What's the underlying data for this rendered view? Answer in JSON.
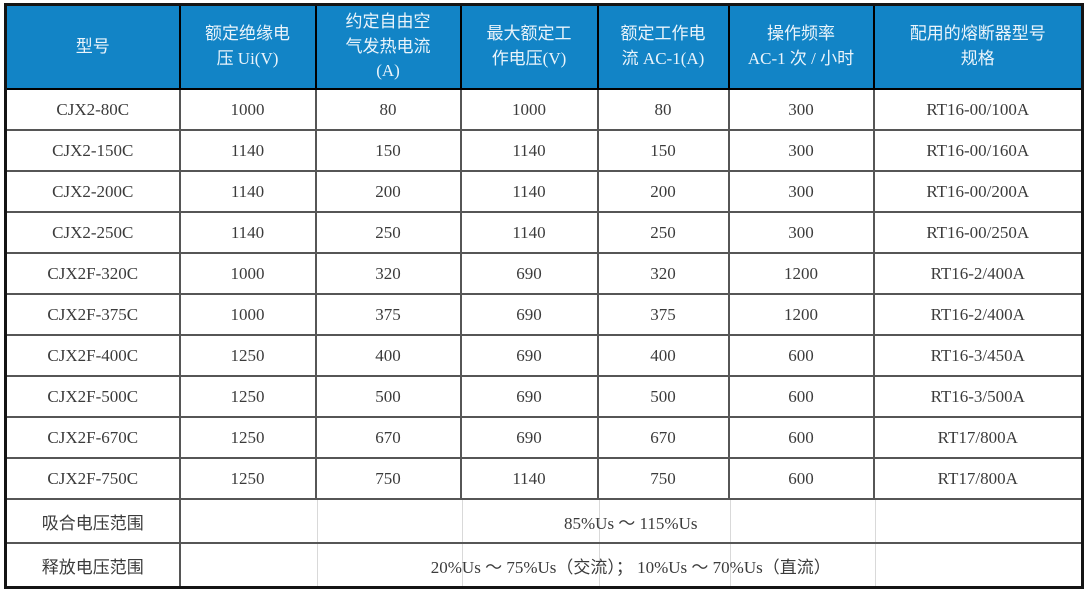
{
  "colors": {
    "header_bg": "#1284C6",
    "header_text": "#EAF4FB",
    "body_text": "#3B3B3B",
    "inner_grid_line": "#565656",
    "outer_border": "#141414",
    "faint_grid_remnant": "#D9D9D9"
  },
  "table": {
    "columns": [
      {
        "key": "model",
        "label": "型号"
      },
      {
        "key": "rated-insulation-voltage",
        "label": "额定绝缘电\n压 Ui(V)"
      },
      {
        "key": "conventional-free-air-thermal-current",
        "label": "约定自由空\n气发热电流\n(A)"
      },
      {
        "key": "max-rated-working-voltage",
        "label": "最大额定工\n作电压(V)"
      },
      {
        "key": "rated-working-current-ac1",
        "label": "额定工作电\n流 AC-1(A)"
      },
      {
        "key": "operating-frequency",
        "label": "操作频率\nAC-1 次 / 小时"
      },
      {
        "key": "matching-fuse-spec",
        "label": "配用的熔断器型号\n规格"
      }
    ],
    "rows": [
      [
        "CJX2-80C",
        "1000",
        "80",
        "1000",
        "80",
        "300",
        "RT16-00/100A"
      ],
      [
        "CJX2-150C",
        "1140",
        "150",
        "1140",
        "150",
        "300",
        "RT16-00/160A"
      ],
      [
        "CJX2-200C",
        "1140",
        "200",
        "1140",
        "200",
        "300",
        "RT16-00/200A"
      ],
      [
        "CJX2-250C",
        "1140",
        "250",
        "1140",
        "250",
        "300",
        "RT16-00/250A"
      ],
      [
        "CJX2F-320C",
        "1000",
        "320",
        "690",
        "320",
        "1200",
        "RT16-2/400A"
      ],
      [
        "CJX2F-375C",
        "1000",
        "375",
        "690",
        "375",
        "1200",
        "RT16-2/400A"
      ],
      [
        "CJX2F-400C",
        "1250",
        "400",
        "690",
        "400",
        "600",
        "RT16-3/450A"
      ],
      [
        "CJX2F-500C",
        "1250",
        "500",
        "690",
        "500",
        "600",
        "RT16-3/500A"
      ],
      [
        "CJX2F-670C",
        "1250",
        "670",
        "690",
        "670",
        "600",
        "RT17/800A"
      ],
      [
        "CJX2F-750C",
        "1250",
        "750",
        "1140",
        "750",
        "600",
        "RT17/800A"
      ]
    ],
    "footer_rows": [
      {
        "label": "吸合电压范围",
        "value": "85%Us ～ 115%Us"
      },
      {
        "label": "释放电压范围",
        "value": "20%Us ～ 75%Us（交流）； 10%Us ～ 70%Us（直流）"
      }
    ]
  }
}
